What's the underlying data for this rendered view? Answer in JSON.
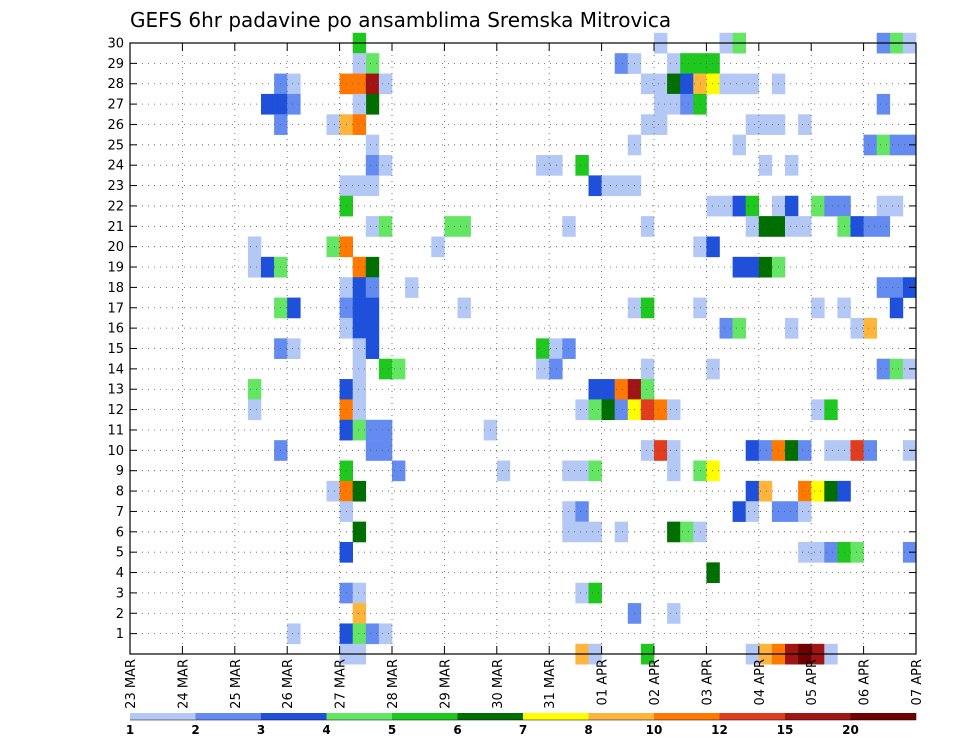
{
  "chart_data": {
    "type": "heatmap",
    "title": "GEFS 6hr padavine po ansamblima Sremska Mitrovica",
    "x_tick_labels": [
      "23 MAR",
      "24 MAR",
      "25 MAR",
      "26 MAR",
      "27 MAR",
      "28 MAR",
      "29 MAR",
      "30 MAR",
      "31 MAR",
      "01 APR",
      "02 APR",
      "03 APR",
      "04 APR",
      "05 APR",
      "06 APR",
      "07 APR"
    ],
    "y_tick_labels": [
      "1",
      "2",
      "3",
      "4",
      "5",
      "6",
      "7",
      "8",
      "9",
      "10",
      "11",
      "12",
      "13",
      "14",
      "15",
      "16",
      "17",
      "18",
      "19",
      "20",
      "21",
      "22",
      "23",
      "24",
      "25",
      "26",
      "27",
      "28",
      "29",
      "30"
    ],
    "x_range": [
      0,
      60
    ],
    "y_range": [
      0,
      30
    ],
    "steps_per_day": 4,
    "grid": true,
    "colorbar": {
      "labels": [
        "1",
        "2",
        "3",
        "4",
        "5",
        "6",
        "7",
        "8",
        "10",
        "12",
        "15",
        "20"
      ],
      "colors": [
        "#b4c8f5",
        "#648cf0",
        "#1e50dc",
        "#64e664",
        "#1ec81e",
        "#006e00",
        "#ffff00",
        "#ffb43c",
        "#ff7800",
        "#e13c1e",
        "#a01414",
        "#6e0000"
      ]
    },
    "cells": [
      [
        17,
        30,
        5
      ],
      [
        58,
        30,
        4
      ],
      [
        57,
        30,
        2
      ],
      [
        59,
        30,
        1
      ],
      [
        40,
        30,
        1
      ],
      [
        45,
        30,
        1
      ],
      [
        46,
        30,
        4
      ],
      [
        18,
        29,
        4
      ],
      [
        17,
        29,
        1
      ],
      [
        37,
        29,
        2
      ],
      [
        38,
        29,
        1
      ],
      [
        41,
        29,
        1
      ],
      [
        42,
        29,
        5
      ],
      [
        43,
        29,
        5
      ],
      [
        44,
        29,
        5
      ],
      [
        11,
        28,
        2
      ],
      [
        12,
        28,
        1
      ],
      [
        16,
        28,
        9
      ],
      [
        17,
        28,
        9
      ],
      [
        18,
        28,
        11
      ],
      [
        19,
        28,
        1
      ],
      [
        39,
        28,
        1
      ],
      [
        40,
        28,
        1
      ],
      [
        41,
        28,
        6
      ],
      [
        42,
        28,
        3
      ],
      [
        43,
        28,
        8
      ],
      [
        44,
        28,
        7
      ],
      [
        45,
        28,
        1
      ],
      [
        46,
        28,
        1
      ],
      [
        47,
        28,
        1
      ],
      [
        49,
        28,
        1
      ],
      [
        10,
        27,
        3
      ],
      [
        11,
        27,
        3
      ],
      [
        12,
        27,
        2
      ],
      [
        18,
        27,
        6
      ],
      [
        17,
        27,
        1
      ],
      [
        40,
        27,
        1
      ],
      [
        41,
        27,
        1
      ],
      [
        42,
        27,
        2
      ],
      [
        43,
        27,
        5
      ],
      [
        57,
        27,
        2
      ],
      [
        11,
        26,
        2
      ],
      [
        15,
        26,
        1
      ],
      [
        16,
        26,
        8
      ],
      [
        17,
        26,
        9
      ],
      [
        39,
        26,
        1
      ],
      [
        40,
        26,
        1
      ],
      [
        47,
        26,
        1
      ],
      [
        48,
        26,
        1
      ],
      [
        49,
        26,
        1
      ],
      [
        51,
        26,
        1
      ],
      [
        18,
        25,
        1
      ],
      [
        38,
        25,
        1
      ],
      [
        46,
        25,
        1
      ],
      [
        56,
        25,
        2
      ],
      [
        57,
        25,
        4
      ],
      [
        58,
        25,
        2
      ],
      [
        59,
        25,
        2
      ],
      [
        18,
        24,
        2
      ],
      [
        19,
        24,
        1
      ],
      [
        31,
        24,
        1
      ],
      [
        32,
        24,
        1
      ],
      [
        34,
        24,
        5
      ],
      [
        48,
        24,
        1
      ],
      [
        50,
        24,
        1
      ],
      [
        16,
        23,
        1
      ],
      [
        17,
        23,
        1
      ],
      [
        18,
        23,
        1
      ],
      [
        35,
        23,
        3
      ],
      [
        36,
        23,
        1
      ],
      [
        37,
        23,
        1
      ],
      [
        38,
        23,
        1
      ],
      [
        16,
        22,
        5
      ],
      [
        44,
        22,
        1
      ],
      [
        45,
        22,
        1
      ],
      [
        46,
        22,
        3
      ],
      [
        47,
        22,
        5
      ],
      [
        49,
        22,
        1
      ],
      [
        50,
        22,
        3
      ],
      [
        52,
        22,
        4
      ],
      [
        53,
        22,
        2
      ],
      [
        54,
        22,
        2
      ],
      [
        57,
        22,
        1
      ],
      [
        58,
        22,
        1
      ],
      [
        18,
        21,
        1
      ],
      [
        19,
        21,
        4
      ],
      [
        24,
        21,
        4
      ],
      [
        25,
        21,
        4
      ],
      [
        33,
        21,
        1
      ],
      [
        39,
        21,
        1
      ],
      [
        47,
        21,
        1
      ],
      [
        48,
        21,
        6
      ],
      [
        49,
        21,
        6
      ],
      [
        50,
        21,
        1
      ],
      [
        51,
        21,
        1
      ],
      [
        54,
        21,
        4
      ],
      [
        55,
        21,
        3
      ],
      [
        56,
        21,
        2
      ],
      [
        57,
        21,
        2
      ],
      [
        9,
        20,
        1
      ],
      [
        15,
        20,
        4
      ],
      [
        16,
        20,
        9
      ],
      [
        23,
        20,
        1
      ],
      [
        43,
        20,
        1
      ],
      [
        44,
        20,
        3
      ],
      [
        9,
        19,
        1
      ],
      [
        10,
        19,
        3
      ],
      [
        11,
        19,
        4
      ],
      [
        17,
        19,
        9
      ],
      [
        18,
        19,
        6
      ],
      [
        46,
        19,
        3
      ],
      [
        47,
        19,
        3
      ],
      [
        48,
        19,
        6
      ],
      [
        49,
        19,
        4
      ],
      [
        16,
        18,
        1
      ],
      [
        17,
        18,
        3
      ],
      [
        18,
        18,
        2
      ],
      [
        21,
        18,
        1
      ],
      [
        57,
        18,
        2
      ],
      [
        58,
        18,
        2
      ],
      [
        59,
        18,
        3
      ],
      [
        11,
        17,
        4
      ],
      [
        12,
        17,
        3
      ],
      [
        16,
        17,
        2
      ],
      [
        17,
        17,
        3
      ],
      [
        18,
        17,
        3
      ],
      [
        25,
        17,
        1
      ],
      [
        38,
        17,
        1
      ],
      [
        39,
        17,
        5
      ],
      [
        43,
        17,
        1
      ],
      [
        52,
        17,
        1
      ],
      [
        54,
        17,
        1
      ],
      [
        58,
        17,
        3
      ],
      [
        16,
        16,
        1
      ],
      [
        17,
        16,
        3
      ],
      [
        18,
        16,
        3
      ],
      [
        45,
        16,
        2
      ],
      [
        46,
        16,
        4
      ],
      [
        50,
        16,
        1
      ],
      [
        55,
        16,
        1
      ],
      [
        56,
        16,
        8
      ],
      [
        11,
        15,
        2
      ],
      [
        12,
        15,
        1
      ],
      [
        17,
        15,
        1
      ],
      [
        18,
        15,
        3
      ],
      [
        31,
        15,
        5
      ],
      [
        32,
        15,
        1
      ],
      [
        33,
        15,
        2
      ],
      [
        17,
        14,
        1
      ],
      [
        19,
        14,
        5
      ],
      [
        20,
        14,
        4
      ],
      [
        31,
        14,
        1
      ],
      [
        32,
        14,
        2
      ],
      [
        39,
        14,
        1
      ],
      [
        44,
        14,
        1
      ],
      [
        57,
        14,
        2
      ],
      [
        58,
        14,
        4
      ],
      [
        59,
        14,
        1
      ],
      [
        9,
        13,
        4
      ],
      [
        16,
        13,
        3
      ],
      [
        17,
        13,
        1
      ],
      [
        35,
        13,
        3
      ],
      [
        36,
        13,
        3
      ],
      [
        37,
        13,
        9
      ],
      [
        38,
        13,
        11
      ],
      [
        39,
        13,
        4
      ],
      [
        9,
        12,
        1
      ],
      [
        16,
        12,
        9
      ],
      [
        17,
        12,
        1
      ],
      [
        34,
        12,
        1
      ],
      [
        35,
        12,
        4
      ],
      [
        36,
        12,
        6
      ],
      [
        37,
        12,
        2
      ],
      [
        38,
        12,
        7
      ],
      [
        39,
        12,
        10
      ],
      [
        40,
        12,
        9
      ],
      [
        41,
        12,
        1
      ],
      [
        52,
        12,
        1
      ],
      [
        53,
        12,
        5
      ],
      [
        16,
        11,
        3
      ],
      [
        17,
        11,
        4
      ],
      [
        18,
        11,
        2
      ],
      [
        19,
        11,
        2
      ],
      [
        27,
        11,
        1
      ],
      [
        11,
        10,
        2
      ],
      [
        18,
        10,
        2
      ],
      [
        19,
        10,
        2
      ],
      [
        39,
        10,
        1
      ],
      [
        40,
        10,
        10
      ],
      [
        41,
        10,
        1
      ],
      [
        47,
        10,
        3
      ],
      [
        48,
        10,
        2
      ],
      [
        49,
        10,
        9
      ],
      [
        50,
        10,
        6
      ],
      [
        51,
        10,
        2
      ],
      [
        53,
        10,
        1
      ],
      [
        54,
        10,
        1
      ],
      [
        55,
        10,
        10
      ],
      [
        56,
        10,
        2
      ],
      [
        59,
        10,
        1
      ],
      [
        16,
        9,
        5
      ],
      [
        20,
        9,
        2
      ],
      [
        28,
        9,
        1
      ],
      [
        33,
        9,
        1
      ],
      [
        34,
        9,
        1
      ],
      [
        35,
        9,
        4
      ],
      [
        41,
        9,
        1
      ],
      [
        43,
        9,
        4
      ],
      [
        44,
        9,
        7
      ],
      [
        15,
        8,
        1
      ],
      [
        16,
        8,
        9
      ],
      [
        17,
        8,
        6
      ],
      [
        47,
        8,
        3
      ],
      [
        48,
        8,
        8
      ],
      [
        51,
        8,
        9
      ],
      [
        52,
        8,
        7
      ],
      [
        53,
        8,
        6
      ],
      [
        54,
        8,
        3
      ],
      [
        16,
        7,
        1
      ],
      [
        33,
        7,
        1
      ],
      [
        34,
        7,
        2
      ],
      [
        46,
        7,
        3
      ],
      [
        47,
        7,
        1
      ],
      [
        49,
        7,
        2
      ],
      [
        50,
        7,
        2
      ],
      [
        51,
        7,
        1
      ],
      [
        17,
        6,
        6
      ],
      [
        33,
        6,
        1
      ],
      [
        34,
        6,
        1
      ],
      [
        35,
        6,
        1
      ],
      [
        37,
        6,
        1
      ],
      [
        41,
        6,
        6
      ],
      [
        42,
        6,
        4
      ],
      [
        43,
        6,
        1
      ],
      [
        16,
        5,
        3
      ],
      [
        51,
        5,
        1
      ],
      [
        52,
        5,
        1
      ],
      [
        53,
        5,
        2
      ],
      [
        54,
        5,
        5
      ],
      [
        55,
        5,
        4
      ],
      [
        59,
        5,
        2
      ],
      [
        44,
        4,
        6
      ],
      [
        16,
        3,
        2
      ],
      [
        17,
        3,
        1
      ],
      [
        34,
        3,
        1
      ],
      [
        35,
        3,
        5
      ],
      [
        17,
        2,
        8
      ],
      [
        38,
        2,
        2
      ],
      [
        41,
        2,
        1
      ],
      [
        12,
        1,
        1
      ],
      [
        16,
        1,
        3
      ],
      [
        17,
        1,
        4
      ],
      [
        18,
        1,
        2
      ],
      [
        19,
        1,
        1
      ],
      [
        16,
        0,
        1
      ],
      [
        17,
        0,
        1
      ],
      [
        34,
        0,
        8
      ],
      [
        35,
        0,
        1
      ],
      [
        39,
        0,
        5
      ],
      [
        47,
        0,
        1
      ],
      [
        48,
        0,
        8
      ],
      [
        49,
        0,
        9
      ],
      [
        50,
        0,
        11
      ],
      [
        51,
        0,
        12
      ],
      [
        52,
        0,
        11
      ],
      [
        53,
        0,
        1
      ]
    ]
  }
}
